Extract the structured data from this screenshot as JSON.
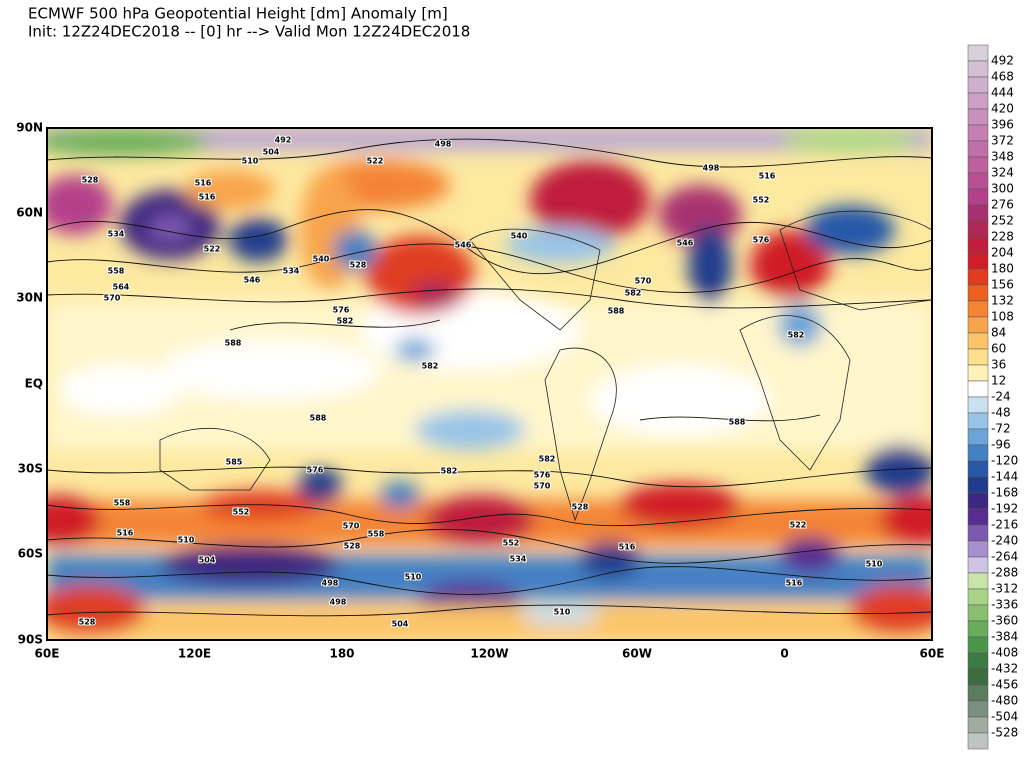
{
  "header": {
    "title": "ECMWF 500 hPa Geopotential Height [dm] Anomaly [m]",
    "subtitle": "Init: 12Z24DEC2018 -- [0] hr --> Valid Mon 12Z24DEC2018"
  },
  "map": {
    "lat_labels": [
      "90N",
      "60N",
      "30N",
      "EQ",
      "30S",
      "60S",
      "90S"
    ],
    "lon_labels": [
      "60E",
      "120E",
      "180",
      "120W",
      "60W",
      "0",
      "60E"
    ],
    "contour_labels": [
      492,
      498,
      504,
      510,
      522,
      516,
      516,
      528,
      534,
      522,
      558,
      564,
      570,
      546,
      534,
      540,
      528,
      576,
      582,
      588,
      582,
      546,
      540,
      570,
      582,
      588,
      498,
      516,
      552,
      546,
      576,
      582,
      588,
      588,
      585,
      582,
      576,
      576,
      570,
      582,
      558,
      516,
      510,
      504,
      552,
      570,
      558,
      528,
      498,
      498,
      510,
      552,
      534,
      528,
      516,
      510,
      504,
      528,
      516,
      522,
      510
    ]
  },
  "colorbar": {
    "ticks": [
      492,
      468,
      444,
      420,
      396,
      372,
      348,
      324,
      300,
      276,
      252,
      228,
      204,
      180,
      156,
      132,
      108,
      84,
      60,
      36,
      12,
      -24,
      -48,
      -72,
      -96,
      -120,
      -144,
      -168,
      -192,
      -216,
      -240,
      -264,
      -288,
      -312,
      -336,
      -360,
      -384,
      -408,
      -432,
      -456,
      -480,
      -504,
      -528
    ],
    "colors": [
      "#d9d0dc",
      "#d4c0d4",
      "#cfb0cc",
      "#cba0c4",
      "#c890bc",
      "#c480b2",
      "#c070a8",
      "#bc609e",
      "#b85094",
      "#b4408a",
      "#a83070",
      "#b02858",
      "#c01e3c",
      "#d01e28",
      "#e03c20",
      "#ec6020",
      "#f48434",
      "#f8a44c",
      "#fcc468",
      "#fde08c",
      "#fff2b8",
      "#ffffff",
      "#c8e0f0",
      "#98c4e8",
      "#6ca4d8",
      "#4480c4",
      "#2858a8",
      "#203c8c",
      "#3c2880",
      "#582c90",
      "#7c58b0",
      "#a890cc",
      "#d0c4e4",
      "#c8e4a8",
      "#a8d488",
      "#88c070",
      "#68ac5c",
      "#4c944c",
      "#3c7c44",
      "#3c6c40",
      "#5c7c60",
      "#7c9080",
      "#a0aca0",
      "#c0c4c0"
    ]
  }
}
